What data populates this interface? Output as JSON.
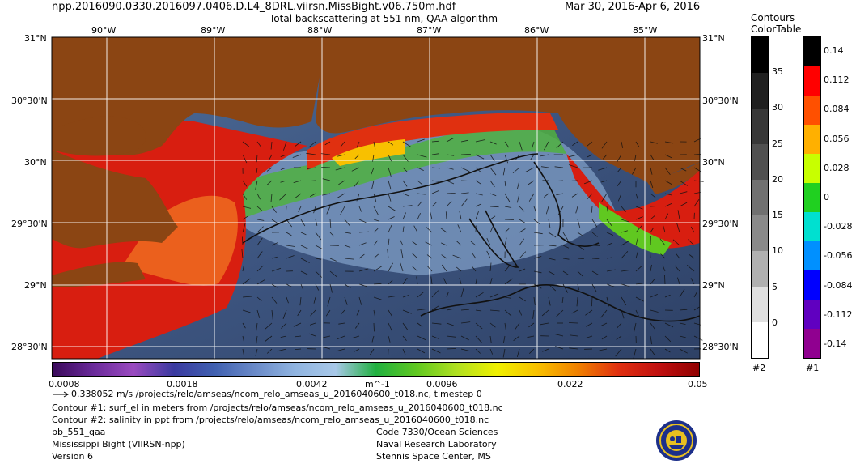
{
  "header": {
    "file": "npp.2016090.0330.2016097.0406.D.L4_8DRL.viirsn.MissBight.v06.750m.hdf",
    "product": "Total backscattering at 551 nm, QAA algorithm",
    "dates": "Mar 30, 2016-Apr  6, 2016"
  },
  "axes": {
    "lon_labels": [
      "90°W",
      "89°W",
      "88°W",
      "87°W",
      "86°W",
      "85°W"
    ],
    "lat_labels": [
      "31°N",
      "30°30'N",
      "30°N",
      "29°30'N",
      "29°N",
      "28°30'N"
    ]
  },
  "colorbar": {
    "tick_labels": [
      "0.0008",
      "0.0018",
      "0.0042",
      "0.0096",
      "0.022",
      "0.05"
    ],
    "unit": "m^-1",
    "colors": [
      "#3a0a5a",
      "#6a2a9a",
      "#9a4ac0",
      "#3a3aa0",
      "#4060b0",
      "#6a8ac8",
      "#90b4e0",
      "#a8c8e8",
      "#20b040",
      "#60c820",
      "#b0e020",
      "#f0f000",
      "#f8c000",
      "#f08000",
      "#e03010",
      "#c01010",
      "#900000"
    ]
  },
  "contours_colortable": {
    "title_line1": "Contours",
    "title_line2": "ColorTable",
    "gray_labels": [
      "35",
      "30",
      "25",
      "20",
      "15",
      "10",
      "5",
      "0"
    ],
    "gray_colors": [
      "#000000",
      "#202020",
      "#383838",
      "#505050",
      "#707070",
      "#8a8a8a",
      "#b0b0b0",
      "#e0e0e0",
      "#ffffff"
    ],
    "gray_id": "#2",
    "color_labels": [
      "0.14",
      "0.112",
      "0.084",
      "0.056",
      "0.028",
      "0",
      "-0.028",
      "-0.056",
      "-0.084",
      "-0.112",
      "-0.14"
    ],
    "color_colors": [
      "#000000",
      "#ff0000",
      "#ff5000",
      "#ffb000",
      "#c8ff00",
      "#20d020",
      "#00e0d0",
      "#0090ff",
      "#0000ff",
      "#6000c0",
      "#900090"
    ],
    "color_id": "#1"
  },
  "footer": {
    "vector_legend": "0.338052 m/s /projects/relo/amseas/ncom_relo_amseas_u_2016040600_t018.nc, timestep 0",
    "contour1": "Contour #1: surf_el in meters from /projects/relo/amseas/ncom_relo_amseas_u_2016040600_t018.nc",
    "contour2": "Contour #2: salinity in ppt from /projects/relo/amseas/ncom_relo_amseas_u_2016040600_t018.nc",
    "var_name": "bb_551_qaa",
    "region": "Mississippi Bight (VIIRSN-npp)",
    "version": "Version 6",
    "org_code": "Code 7330/Ocean Sciences",
    "org_name": "Naval Research Laboratory",
    "org_place": "Stennis Space Center, MS"
  },
  "colors": {
    "land": "#8b4513",
    "deep_water": "#3a4f7a",
    "mid_water": "#6a8ab0",
    "shelf_green": "#50b040",
    "coastal_red": "#d81e10"
  }
}
